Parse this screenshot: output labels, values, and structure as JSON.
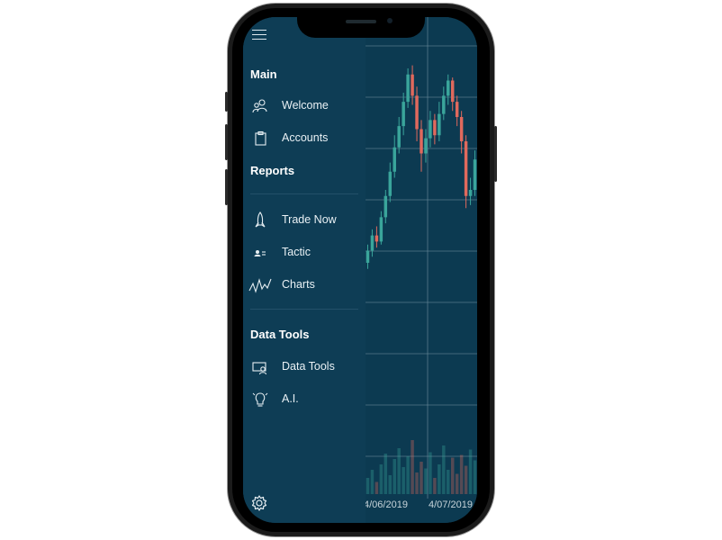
{
  "drawer": {
    "menu_icon": "hamburger-icon",
    "sections": {
      "main": "Main",
      "reports": "Reports",
      "data_tools": "Data Tools"
    },
    "items": [
      {
        "label": "Welcome",
        "icon": "people-icon"
      },
      {
        "label": "Accounts",
        "icon": "clipboard-icon"
      },
      {
        "label": "Trade Now",
        "icon": "rocket-icon"
      },
      {
        "label": "Tactic",
        "icon": "contact-card-icon"
      },
      {
        "label": "Charts",
        "icon": "line-chart-icon"
      },
      {
        "label": "Data Tools",
        "icon": "monitor-user-icon"
      },
      {
        "label": "A.I.",
        "icon": "lightbulb-icon"
      }
    ],
    "settings_icon": "gear-icon"
  },
  "chart": {
    "x_ticks": [
      "4/06/2019",
      "4/07/2019"
    ],
    "colors": {
      "up": "#3aa59b",
      "down": "#e0695d",
      "grid": "#6f8e9e",
      "background": "#0c3a51"
    }
  },
  "chart_data": {
    "type": "candlestick",
    "x_tick_labels": [
      "4/06/2019",
      "4/07/2019"
    ],
    "candles": [
      {
        "o": 48,
        "c": 52,
        "h": 54,
        "l": 46
      },
      {
        "o": 52,
        "c": 57,
        "h": 59,
        "l": 50
      },
      {
        "o": 57,
        "c": 55,
        "h": 60,
        "l": 53
      },
      {
        "o": 55,
        "c": 63,
        "h": 65,
        "l": 54
      },
      {
        "o": 63,
        "c": 70,
        "h": 72,
        "l": 61
      },
      {
        "o": 70,
        "c": 78,
        "h": 81,
        "l": 68
      },
      {
        "o": 78,
        "c": 86,
        "h": 90,
        "l": 76
      },
      {
        "o": 86,
        "c": 93,
        "h": 96,
        "l": 84
      },
      {
        "o": 93,
        "c": 101,
        "h": 104,
        "l": 90
      },
      {
        "o": 101,
        "c": 110,
        "h": 112,
        "l": 99
      },
      {
        "o": 110,
        "c": 103,
        "h": 113,
        "l": 100
      },
      {
        "o": 103,
        "c": 92,
        "h": 106,
        "l": 88
      },
      {
        "o": 92,
        "c": 84,
        "h": 95,
        "l": 78
      },
      {
        "o": 84,
        "c": 89,
        "h": 92,
        "l": 81
      },
      {
        "o": 89,
        "c": 95,
        "h": 98,
        "l": 86
      },
      {
        "o": 95,
        "c": 90,
        "h": 97,
        "l": 87
      },
      {
        "o": 90,
        "c": 97,
        "h": 101,
        "l": 88
      },
      {
        "o": 97,
        "c": 103,
        "h": 106,
        "l": 95
      },
      {
        "o": 103,
        "c": 108,
        "h": 110,
        "l": 100
      },
      {
        "o": 108,
        "c": 101,
        "h": 109,
        "l": 98
      },
      {
        "o": 101,
        "c": 96,
        "h": 103,
        "l": 93
      },
      {
        "o": 96,
        "c": 88,
        "h": 98,
        "l": 84
      },
      {
        "o": 88,
        "c": 70,
        "h": 90,
        "l": 66
      },
      {
        "o": 70,
        "c": 72,
        "h": 76,
        "l": 67
      },
      {
        "o": 72,
        "c": 82,
        "h": 85,
        "l": 70
      }
    ],
    "y_range": [
      40,
      120
    ],
    "volumes": [
      12,
      18,
      9,
      22,
      30,
      14,
      26,
      34,
      20,
      28,
      40,
      16,
      24,
      19,
      31,
      12,
      22,
      36,
      18,
      27,
      15,
      29,
      21,
      33,
      25
    ],
    "volume_range": [
      0,
      60
    ]
  }
}
